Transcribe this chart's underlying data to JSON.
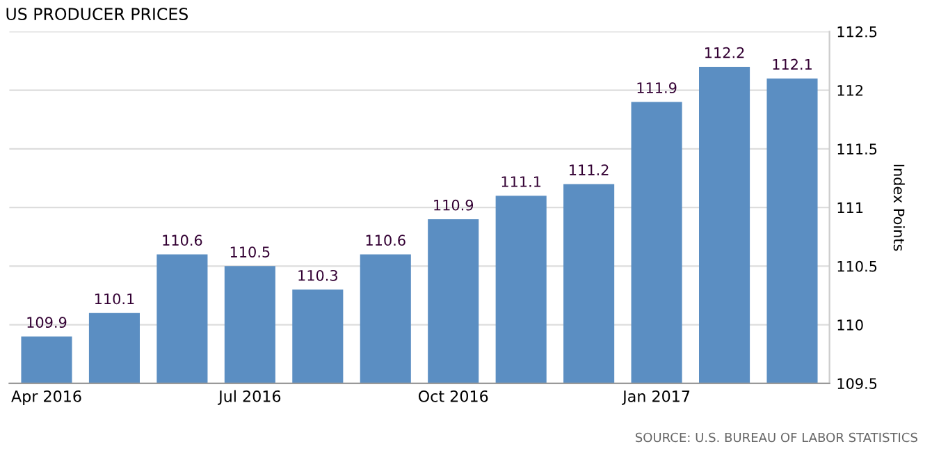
{
  "chart_data": {
    "type": "bar",
    "title": "US PRODUCER PRICES",
    "ylabel": "Index Points",
    "categories": [
      "Apr 2016",
      null,
      null,
      "Jul 2016",
      null,
      null,
      "Oct 2016",
      null,
      null,
      "Jan 2017",
      null,
      null
    ],
    "values": [
      109.9,
      110.1,
      110.6,
      110.5,
      110.3,
      110.6,
      110.9,
      111.1,
      111.2,
      111.9,
      112.2,
      112.1
    ],
    "color": "#5b8ec2",
    "data_labels": true,
    "ylim": [
      109.5,
      112.5
    ],
    "yticks": [
      109.5,
      110,
      110.5,
      111,
      111.5,
      112,
      112.5
    ],
    "grid": "y",
    "annotations": [
      "SOURCE: U.S. BUREAU OF LABOR STATISTICS"
    ]
  }
}
